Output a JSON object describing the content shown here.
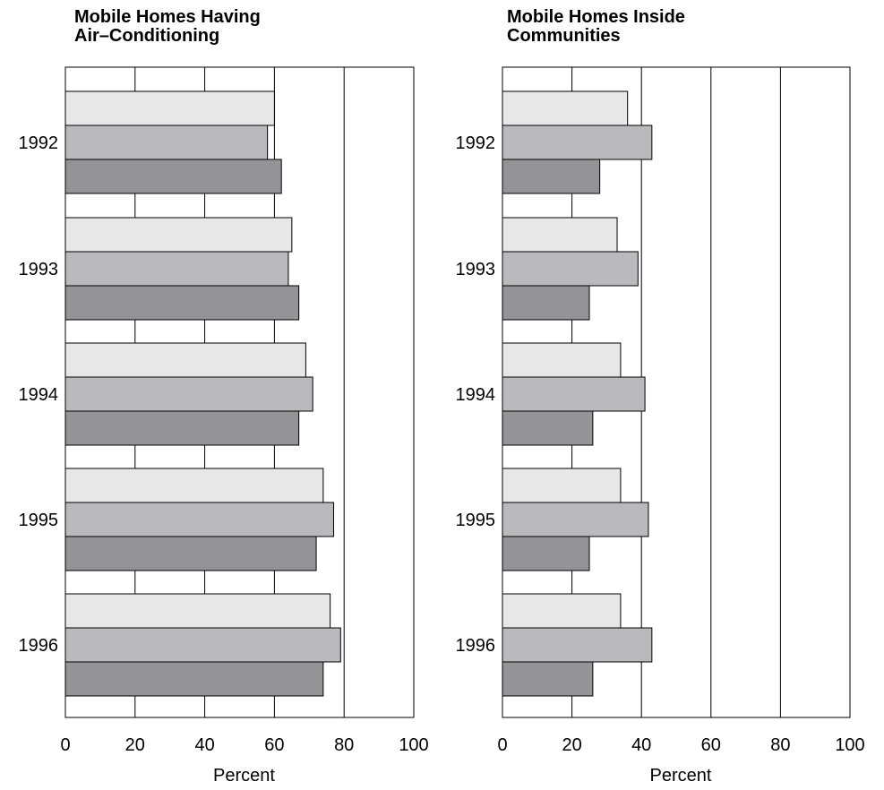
{
  "chart_data": [
    {
      "type": "bar",
      "orientation": "horizontal",
      "title_lines": [
        "Mobile Homes Having",
        "Air–Conditioning"
      ],
      "xlabel": "Percent",
      "ylabel": "",
      "categories": [
        "1992",
        "1993",
        "1994",
        "1995",
        "1996"
      ],
      "xlim": [
        0,
        100
      ],
      "xticks": [
        "0",
        "20",
        "40",
        "60",
        "80",
        "100"
      ],
      "grid": "vertical",
      "legend": "none",
      "colors": [
        "#e6e7e9",
        "#b9babd",
        "#939497"
      ],
      "series": [
        {
          "values": [
            60,
            65,
            69,
            74,
            76
          ]
        },
        {
          "values": [
            58,
            64,
            71,
            77,
            79
          ]
        },
        {
          "values": [
            62,
            67,
            67,
            72,
            74
          ]
        }
      ]
    },
    {
      "type": "bar",
      "orientation": "horizontal",
      "title_lines": [
        "Mobile Homes Inside",
        "Communities"
      ],
      "xlabel": "Percent",
      "ylabel": "",
      "categories": [
        "1992",
        "1993",
        "1994",
        "1995",
        "1996"
      ],
      "xlim": [
        0,
        100
      ],
      "xticks": [
        "0",
        "20",
        "40",
        "60",
        "80",
        "100"
      ],
      "grid": "vertical",
      "legend": "none",
      "colors": [
        "#e6e7e9",
        "#b9babd",
        "#939497"
      ],
      "series": [
        {
          "values": [
            36,
            33,
            34,
            34,
            34
          ]
        },
        {
          "values": [
            43,
            39,
            41,
            42,
            43
          ]
        },
        {
          "values": [
            28,
            25,
            26,
            25,
            26
          ]
        }
      ]
    }
  ]
}
